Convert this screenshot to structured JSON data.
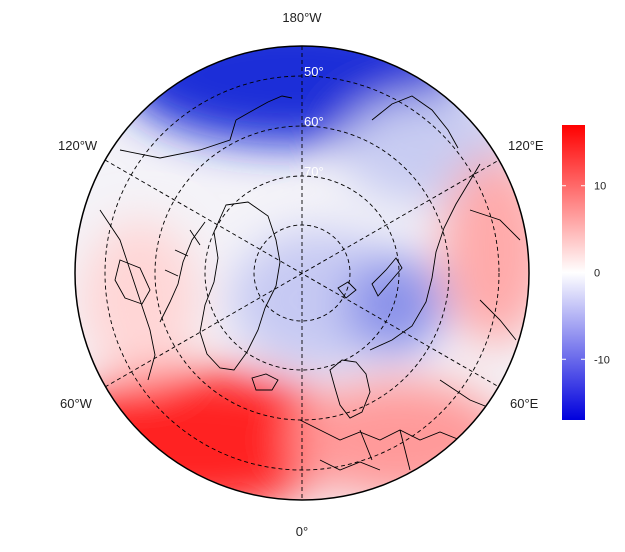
{
  "map": {
    "projection": "north-polar-stereographic",
    "longitude_labels": {
      "top": "180°W",
      "upper_left": "120°W",
      "upper_right": "120°E",
      "lower_left": "60°W",
      "lower_right": "60°E",
      "bottom": "0°"
    },
    "latitude_labels": [
      "50°",
      "60°",
      "70°"
    ],
    "graticule_style": "dashed",
    "anomaly_regions": [
      {
        "name": "north-pacific",
        "sign": "negative",
        "level": 0.9
      },
      {
        "name": "siberia-beringia",
        "sign": "negative",
        "level": 0.35
      },
      {
        "name": "north-atlantic",
        "sign": "positive",
        "level": 1.0
      },
      {
        "name": "europe",
        "sign": "positive",
        "level": 0.5
      },
      {
        "name": "central-asia",
        "sign": "positive",
        "level": 0.45
      },
      {
        "name": "arctic-ocean",
        "sign": "negative",
        "level": 0.3
      },
      {
        "name": "barents-kara",
        "sign": "negative",
        "level": 0.6
      },
      {
        "name": "north-america",
        "sign": "positive",
        "level": 0.2
      }
    ]
  },
  "colorbar": {
    "ticks": [
      "10",
      "0",
      "-10"
    ],
    "tick_values": [
      10,
      0,
      -10
    ],
    "range": [
      -17,
      17
    ],
    "colors": {
      "low": "#0000dd",
      "mid": "#ffffff",
      "high": "#ff0000"
    }
  }
}
